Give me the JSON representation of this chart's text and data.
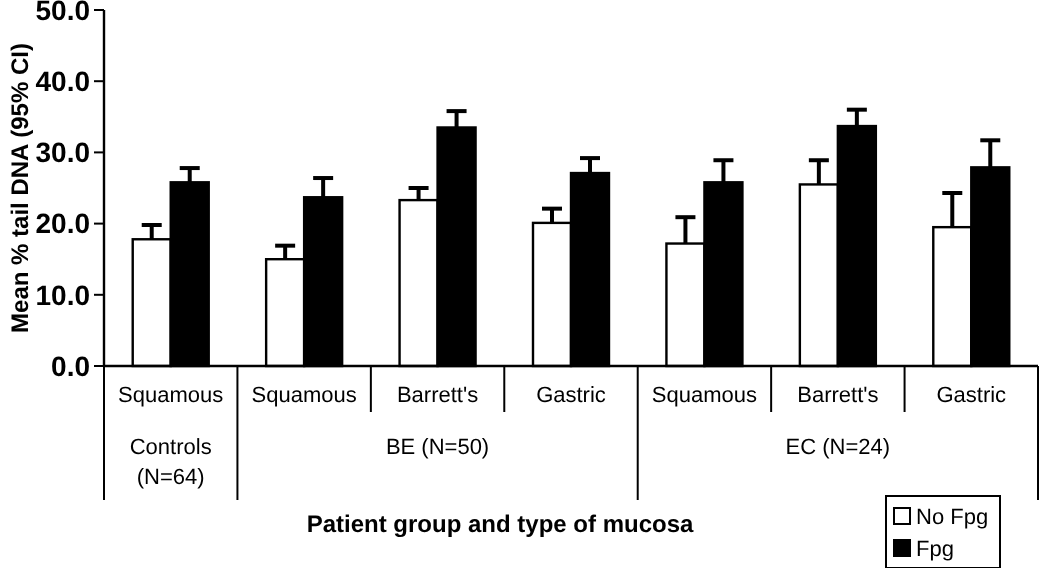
{
  "chart_data": {
    "type": "bar",
    "xlabel": "Patient group and type of mucosa",
    "ylabel": "Mean % tail DNA (95% CI)",
    "categories": [
      "Squamous",
      "Squamous",
      "Barrett's",
      "Gastric",
      "Squamous",
      "Barrett's",
      "Gastric"
    ],
    "annotations": [
      "Controls (N=64)",
      "BE (N=50)",
      "EC (N=24)"
    ],
    "series": [
      {
        "name": "No Fpg",
        "color": "#ffffff",
        "values": [
          17.8,
          15.0,
          23.3,
          20.1,
          17.2,
          25.5,
          19.5
        ],
        "errors": [
          [
            17.8,
            19.8
          ],
          [
            15.0,
            16.9
          ],
          [
            23.3,
            25.0
          ],
          [
            20.1,
            22.1
          ],
          [
            17.2,
            20.9
          ],
          [
            25.5,
            28.9
          ],
          [
            19.5,
            24.3
          ]
        ]
      },
      {
        "name": "Fpg",
        "color": "#000000",
        "values": [
          25.8,
          23.7,
          33.5,
          27.1,
          25.8,
          33.7,
          27.9
        ],
        "errors": [
          [
            25.8,
            27.8
          ],
          [
            23.7,
            26.4
          ],
          [
            33.5,
            35.8
          ],
          [
            27.1,
            29.2
          ],
          [
            25.8,
            28.9
          ],
          [
            33.7,
            36.0
          ],
          [
            27.9,
            31.7
          ]
        ]
      }
    ],
    "ylim": [
      0,
      50
    ],
    "yticks": [
      {
        "value": 0,
        "label": "0.0"
      },
      {
        "value": 10,
        "label": "10.0"
      },
      {
        "value": 20,
        "label": "20.0"
      },
      {
        "value": 30,
        "label": "30.0"
      },
      {
        "value": 40,
        "label": "40.0"
      },
      {
        "value": 50,
        "label": "50.0"
      }
    ],
    "grid": false,
    "legend": "bottom right"
  }
}
